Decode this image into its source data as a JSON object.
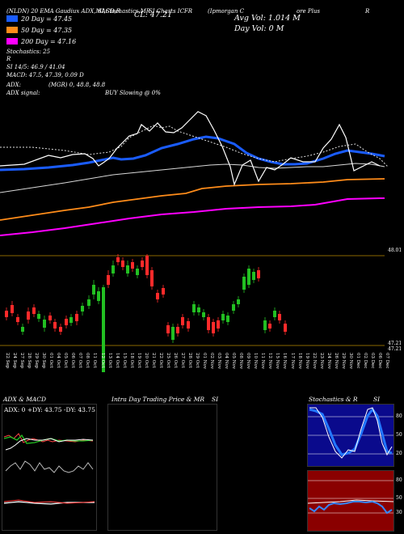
{
  "header": {
    "line1_left": "(NLDN) 20 EMA Gaudiux ADX,MACD,R",
    "line1_mid": "SI,Stochastics,MR",
    "line1_chart": "SI Charts ICFR",
    "line1_co": "(Ipmorgan C",
    "line1_co2": "ore Plus",
    "line1_co3": "R",
    "cl_label": "CL: 47.21",
    "avg_vol": "Avg Vol: 1.014   M",
    "day_vol": "Day Vol: 0   M"
  },
  "legend": [
    {
      "label": "20 Day = 47.45",
      "color": "#ffffff"
    },
    {
      "label": "50 Day = 47.35",
      "color": "#ff8c1a"
    },
    {
      "label": "200 Day = 47.16",
      "color": "#ff00ff"
    }
  ],
  "indicators": {
    "stoch": "Stochastics: 25",
    "r": "R",
    "rsi": "SI 14/5: 46.9 / 41.04",
    "macd": "MACD: 47.5, 47.39, 0.09 D",
    "adx": "ADX:",
    "adx_vals": "(MGR) 0, 48.8, 48.8",
    "adx_signal": "ADX signal:",
    "buy": "BUY Slowing @ 0%"
  },
  "price_labels": {
    "top": "48.01",
    "bot1": "47.21",
    "bot2": "47.21"
  },
  "dates": [
    "22 Sep",
    "24 Sep",
    "27 Sep",
    "28 Sep",
    "29 Sep",
    "30 Sep",
    "01 Oct",
    "04 Oct",
    "05 Oct",
    "06 Oct",
    "07 Oct",
    "08 Oct",
    "11 Oct",
    "12 Oct",
    "13 Oct",
    "14 Oct",
    "15 Oct",
    "18 Oct",
    "19 Oct",
    "20 Oct",
    "21 Oct",
    "22 Oct",
    "25 Oct",
    "26 Oct",
    "27 Oct",
    "28 Oct",
    "29 Oct",
    "01 Nov",
    "02 Nov",
    "03 Nov",
    "04 Nov",
    "05 Nov",
    "08 Nov",
    "09 Nov",
    "10 Nov",
    "11 Nov",
    "12 Nov",
    "15 Nov",
    "16 Nov",
    "17 Nov",
    "18 Nov",
    "19 Nov",
    "22 Nov",
    "23 Nov",
    "24 Nov",
    "26 Nov",
    "29 Nov",
    "30 Nov",
    "01 Dec",
    "02 Dec",
    "03 Dec",
    "06 Dec",
    "07 Dec"
  ],
  "panels": {
    "adx_title": "ADX  & MACD",
    "adx_box": "ADX: 0   +DY: 43.75   -DY: 43.75",
    "intra_title": "Intra Day Trading Price  & MR",
    "intra_title2": "SI",
    "stoch_title": "Stochastics & R",
    "stoch_title2": "SI",
    "stoch_ticks": [
      "80",
      "50",
      "20"
    ],
    "rsi_ticks": [
      "80",
      "50",
      "30"
    ]
  },
  "colors": {
    "up": "#22c022",
    "down": "#ff2a2a",
    "ema20": "#1a5cff",
    "orange": "#ff8c1a",
    "magenta": "#ff00ff"
  }
}
